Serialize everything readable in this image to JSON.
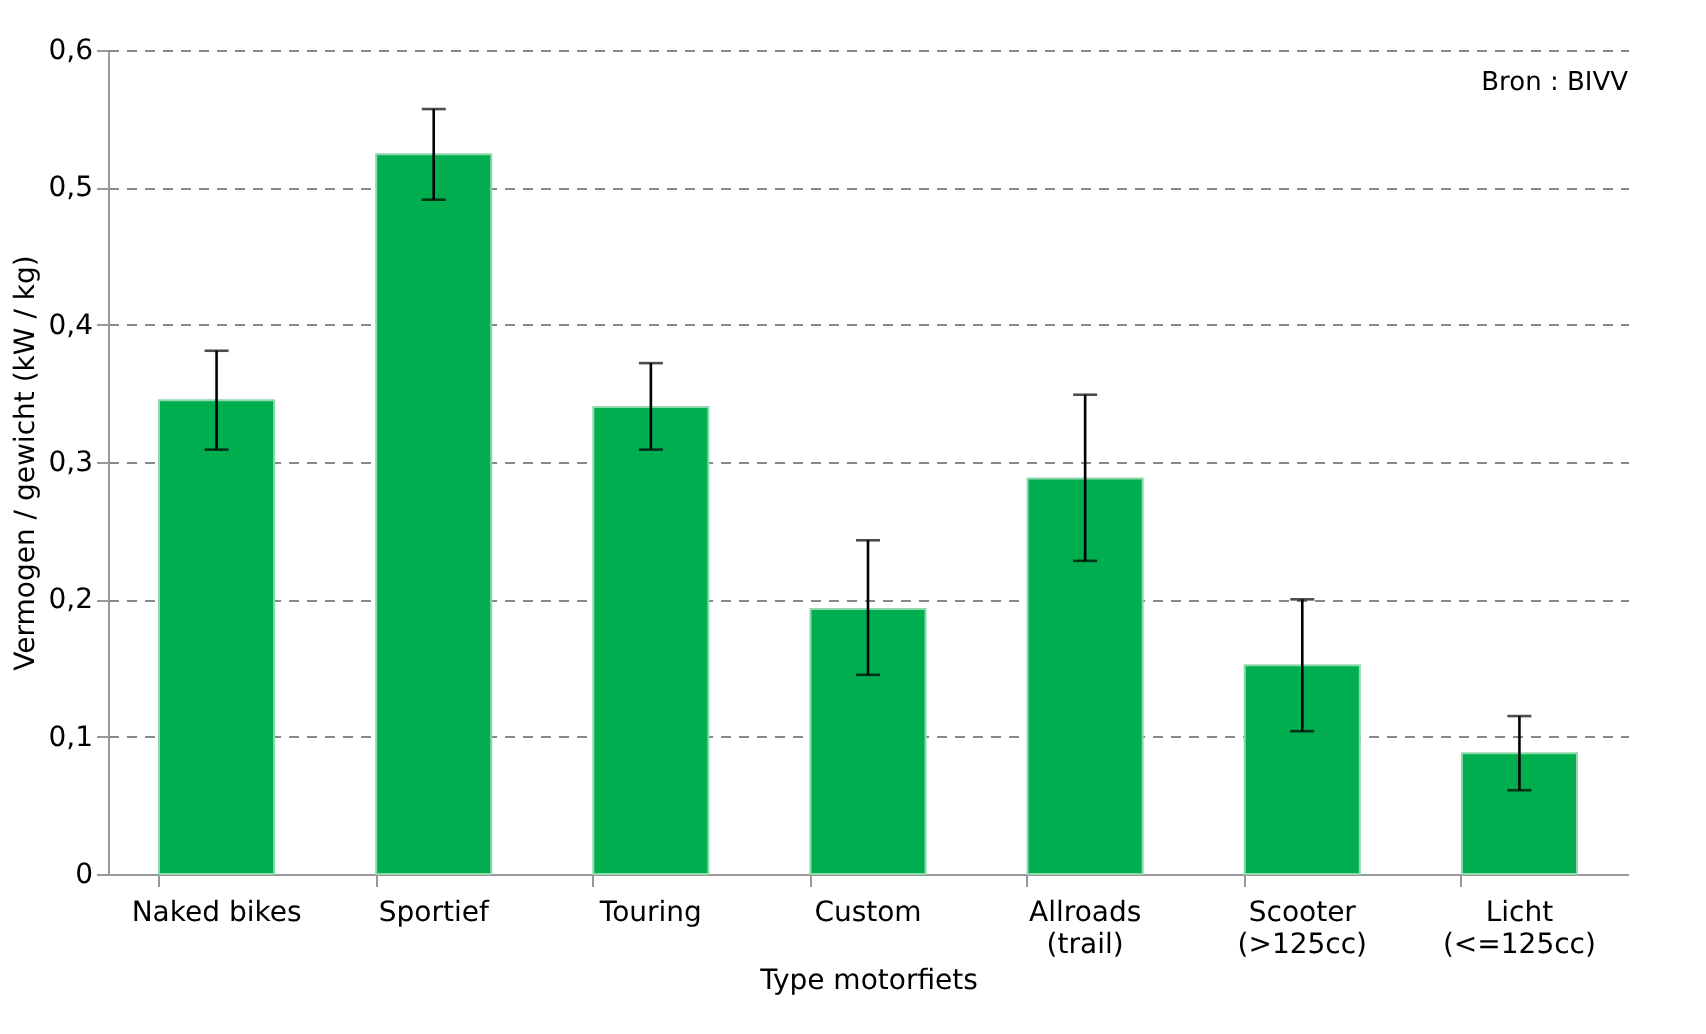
{
  "chart_data": {
    "type": "bar",
    "xlabel": "Type motorfiets",
    "ylabel": "Vermogen / gewicht (kW / kg)",
    "categories": [
      "Naked bikes",
      "Sportief",
      "Touring",
      "Custom",
      "Allroads\n(trail)",
      "Scooter\n(>125cc)",
      "Licht\n(<=125cc)"
    ],
    "values": [
      0.345,
      0.524,
      0.34,
      0.193,
      0.288,
      0.152,
      0.088
    ],
    "errors": [
      [
        0.309,
        0.381
      ],
      [
        0.491,
        0.557
      ],
      [
        0.309,
        0.372
      ],
      [
        0.145,
        0.243
      ],
      [
        0.228,
        0.349
      ],
      [
        0.104,
        0.2
      ],
      [
        0.061,
        0.115
      ]
    ],
    "color": "#00ae4f",
    "ylim": [
      0,
      0.6
    ],
    "yticks": [
      {
        "value": 0,
        "label": "0"
      },
      {
        "value": 0.1,
        "label": "0,1"
      },
      {
        "value": 0.2,
        "label": "0,2"
      },
      {
        "value": 0.3,
        "label": "0,3"
      },
      {
        "value": 0.4,
        "label": "0,4"
      },
      {
        "value": 0.5,
        "label": "0,5"
      },
      {
        "value": 0.6,
        "label": "0,6"
      }
    ],
    "grid": "y",
    "annotations": [
      "Bron : BIVV"
    ]
  }
}
